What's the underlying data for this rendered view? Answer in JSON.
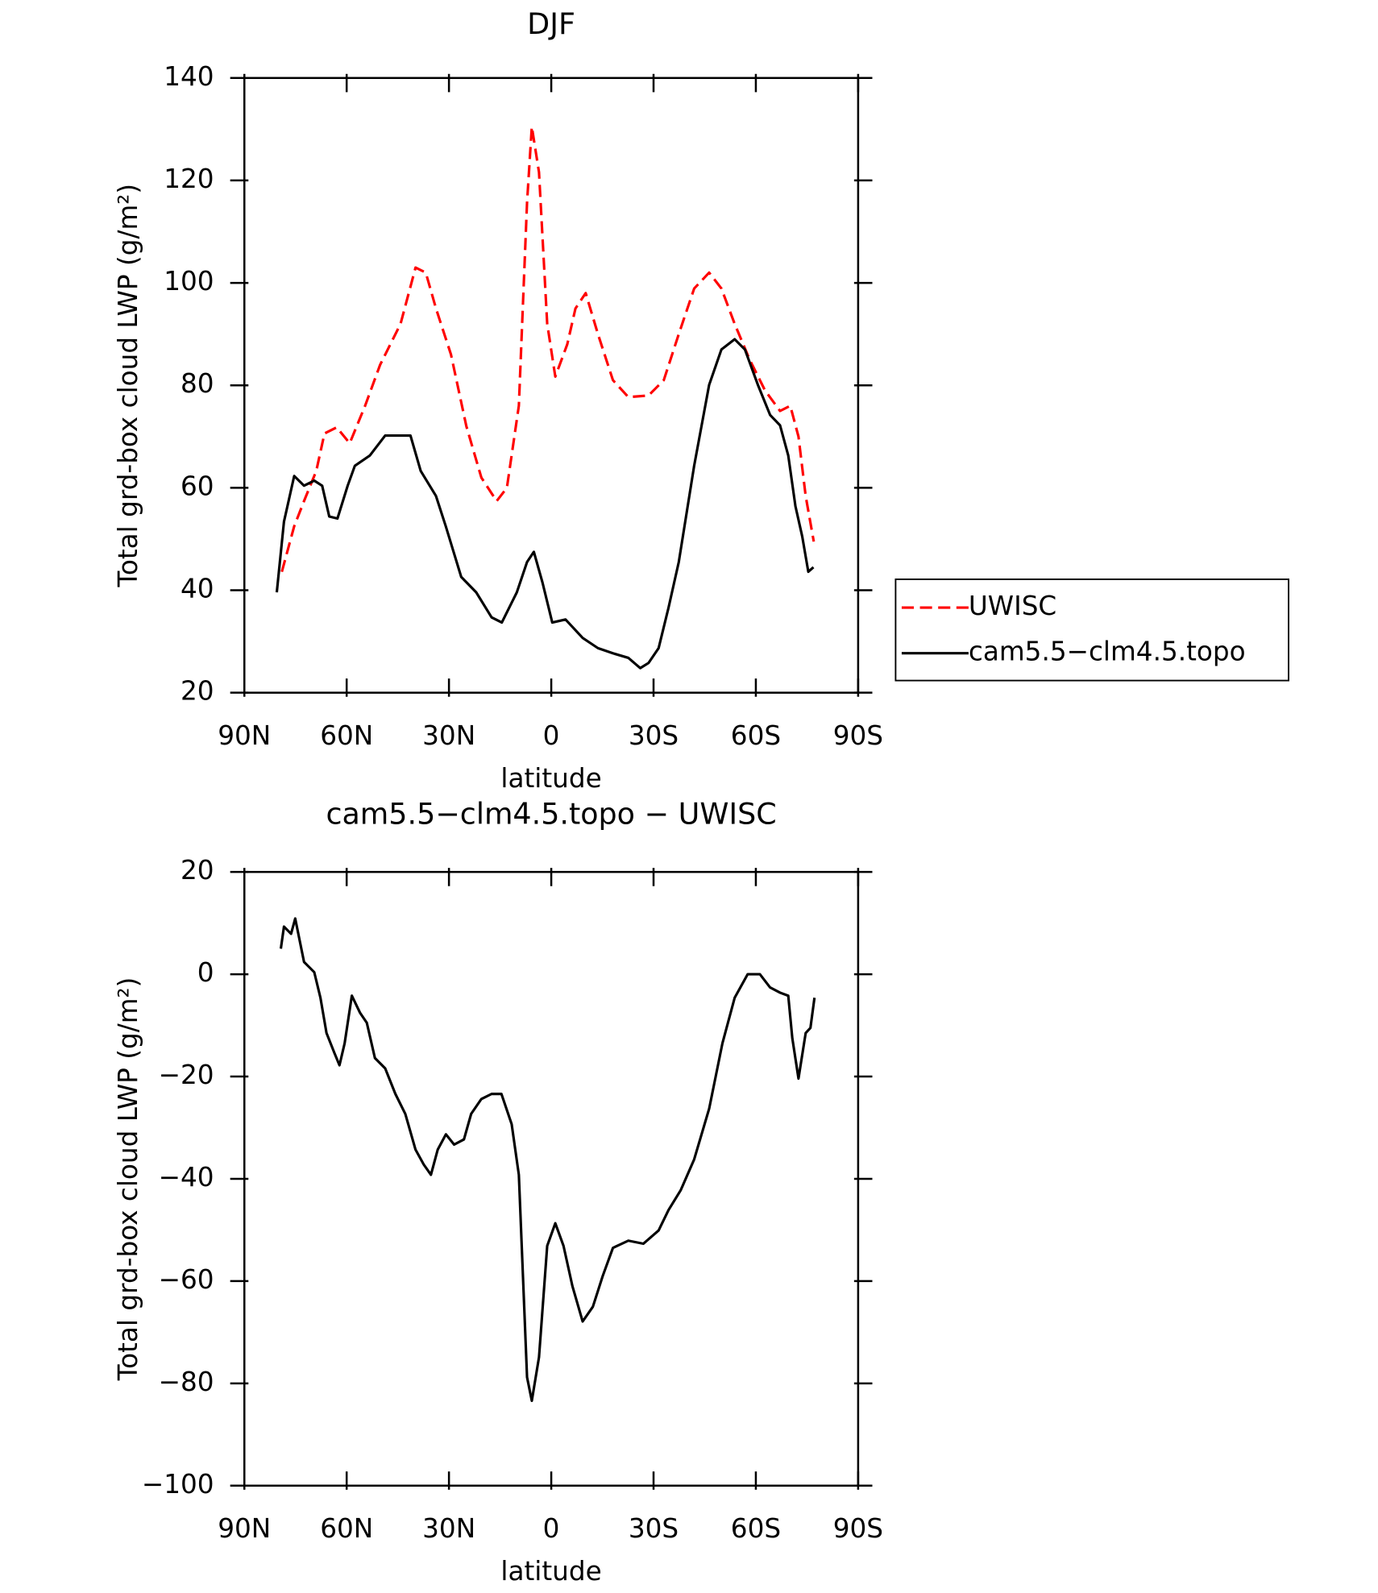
{
  "chart_data": [
    {
      "type": "line",
      "title": "DJF",
      "xlabel": "latitude",
      "ylabel": "Total grd-box cloud LWP (g/m²)",
      "xlim": [
        90,
        -90
      ],
      "xticks": [
        {
          "value": 90,
          "label": "90N"
        },
        {
          "value": 60,
          "label": "60N"
        },
        {
          "value": 30,
          "label": "30N"
        },
        0,
        {
          "value": -30,
          "label": "30S"
        },
        {
          "value": -60,
          "label": "60S"
        },
        {
          "value": -90,
          "label": "90S"
        }
      ],
      "ylim": [
        20,
        140
      ],
      "yticks": [
        20,
        40,
        60,
        80,
        100,
        120,
        140
      ],
      "legend": "right",
      "series": [
        {
          "name": "UWISC",
          "color": "#ff0000",
          "line_style": "dashed",
          "x": [
            79.0,
            75.4,
            72.5,
            68.9,
            66.5,
            62.9,
            59.1,
            54.6,
            50.2,
            44.2,
            39.8,
            36.8,
            33.8,
            29.4,
            24.9,
            20.5,
            16.0,
            13.0,
            9.5,
            7.1,
            5.7,
            3.6,
            1.2,
            -1.2,
            -4.7,
            -7.1,
            -10.1,
            -13.7,
            -18.1,
            -22.6,
            -28.5,
            -33.0,
            -37.4,
            -41.9,
            -46.3,
            -49.9,
            -53.8,
            -58.2,
            -62.7,
            -67.1,
            -70.1,
            -72.5,
            -74.6,
            -77.0
          ],
          "values": [
            43.6,
            52.5,
            57.4,
            63.3,
            70.6,
            71.8,
            68.7,
            76,
            84,
            92,
            103,
            102,
            95,
            86,
            72,
            62,
            57.4,
            60,
            76,
            115.7,
            130.5,
            121.6,
            92,
            81.7,
            88,
            95,
            98,
            90,
            81,
            77.7,
            78,
            81,
            90,
            98.9,
            102,
            98.9,
            92,
            85,
            79,
            75,
            76,
            70,
            58.4,
            49.5
          ]
        },
        {
          "name": "cam5.5−clm4.5.topo",
          "color": "#000000",
          "line_style": "solid",
          "x": [
            80.5,
            78.4,
            75.4,
            72.5,
            69.5,
            67.2,
            65.1,
            62.7,
            59.7,
            57.6,
            53.2,
            48.7,
            44.2,
            41.3,
            38.3,
            33.8,
            30.9,
            26.4,
            22.0,
            17.5,
            14.5,
            10.1,
            7.1,
            5.1,
            2.6,
            -0.3,
            -4.2,
            -9.2,
            -13.7,
            -18.1,
            -22.6,
            -26.1,
            -28.5,
            -31.5,
            -34.4,
            -37.4,
            -41.9,
            -46.3,
            -49.9,
            -53.8,
            -56.8,
            -60.6,
            -64.2,
            -67.1,
            -69.5,
            -71.6,
            -73.6,
            -75.4,
            -76.9
          ],
          "values": [
            39.6,
            53.4,
            62.3,
            60.4,
            61.4,
            60.4,
            54.4,
            54,
            60.4,
            64.3,
            66.3,
            70.2,
            70.2,
            70.2,
            63.3,
            58.4,
            52.4,
            42.6,
            39.6,
            34.7,
            33.7,
            39.6,
            45.5,
            47.5,
            41.6,
            33.7,
            34.3,
            30.7,
            28.7,
            27.7,
            26.8,
            24.8,
            25.8,
            28.7,
            36.6,
            45.5,
            64.3,
            80.1,
            87,
            89,
            87,
            80.1,
            74.2,
            72.2,
            66.3,
            56.4,
            50.5,
            43.6,
            44.5
          ]
        }
      ]
    },
    {
      "type": "line",
      "title": "cam5.5−clm4.5.topo − UWISC",
      "xlabel": "latitude",
      "ylabel": "Total grd-box cloud LWP (g/m²)",
      "xlim": [
        90,
        -90
      ],
      "xticks": [
        {
          "value": 90,
          "label": "90N"
        },
        {
          "value": 60,
          "label": "60N"
        },
        {
          "value": 30,
          "label": "30N"
        },
        0,
        {
          "value": -30,
          "label": "30S"
        },
        {
          "value": -60,
          "label": "60S"
        },
        {
          "value": -90,
          "label": "90S"
        }
      ],
      "ylim": [
        -100,
        20
      ],
      "yticks": [
        {
          "value": -100,
          "label": "−100"
        },
        {
          "value": -80,
          "label": "−80"
        },
        {
          "value": -60,
          "label": "−60"
        },
        {
          "value": -40,
          "label": "−40"
        },
        {
          "value": -20,
          "label": "−20"
        },
        0,
        20
      ],
      "series": [
        {
          "color": "#000000",
          "line_style": "solid",
          "x": [
            79.3,
            78.4,
            76.3,
            75.1,
            72.5,
            69.5,
            67.7,
            65.9,
            63.6,
            62.1,
            60.6,
            58.5,
            56.1,
            54.1,
            51.7,
            48.7,
            45.7,
            42.8,
            39.8,
            37.4,
            35.3,
            33.3,
            30.9,
            28.5,
            25.6,
            23.5,
            20.5,
            17.5,
            14.6,
            11.6,
            9.5,
            7.1,
            5.7,
            3.6,
            1.2,
            -1.2,
            -3.6,
            -6.2,
            -9.2,
            -12.2,
            -15.1,
            -18.1,
            -22.6,
            -27.0,
            -31.5,
            -34.4,
            -38.0,
            -41.9,
            -46.3,
            -50.2,
            -53.8,
            -57.6,
            -61.2,
            -64.2,
            -67.1,
            -69.5,
            -70.7,
            -72.5,
            -74.6,
            -76.0,
            -77.2
          ],
          "values": [
            5,
            9.3,
            7.9,
            10.9,
            2.4,
            0.4,
            -4.6,
            -11.5,
            -15.4,
            -17.8,
            -13.5,
            -4.2,
            -7.5,
            -9.5,
            -16.4,
            -18.4,
            -23.4,
            -27.3,
            -34.3,
            -37.2,
            -39.2,
            -34.3,
            -31.3,
            -33.3,
            -32.3,
            -27.3,
            -24.4,
            -23.4,
            -23.4,
            -29.3,
            -39.2,
            -78.8,
            -83.4,
            -74.9,
            -53.1,
            -48.7,
            -53.1,
            -61,
            -67.9,
            -65,
            -59,
            -53.5,
            -52.1,
            -52.7,
            -50.1,
            -46.1,
            -42.2,
            -36.2,
            -26.3,
            -13.5,
            -4.6,
            0,
            0,
            -2.6,
            -3.6,
            -4.2,
            -12.5,
            -20.4,
            -11.5,
            -10.5,
            -4.6
          ]
        }
      ]
    }
  ]
}
